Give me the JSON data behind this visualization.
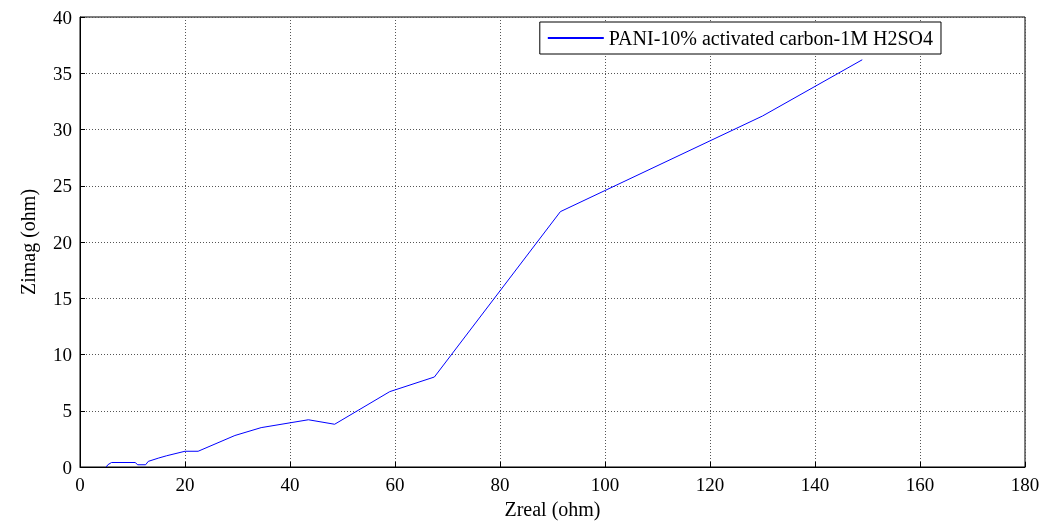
{
  "chart_data": {
    "type": "line",
    "xlabel": "Zreal (ohm)",
    "ylabel": "Zimag (ohm)",
    "x": [
      5,
      5.3,
      6,
      10.5,
      11,
      12.5,
      13,
      15,
      16.5,
      20,
      22.5,
      29.5,
      34.5,
      43.5,
      48.5,
      59,
      67.5,
      91.5,
      130,
      149
    ],
    "series": [
      {
        "name": "PANI-10% activated carbon-1M H2SO4",
        "color": "#0000ff",
        "values": [
          0,
          0.2,
          0.4,
          0.4,
          0.2,
          0.2,
          0.5,
          0.8,
          1.0,
          1.4,
          1.4,
          2.8,
          3.5,
          4.2,
          3.8,
          6.7,
          8,
          22.7,
          31.2,
          36.2
        ]
      }
    ],
    "xlim": [
      0,
      180
    ],
    "xticks": [
      0,
      20,
      40,
      60,
      80,
      100,
      120,
      140,
      160,
      180
    ],
    "ylim": [
      0,
      40
    ],
    "yticks": [
      0,
      5,
      10,
      15,
      20,
      25,
      30,
      35,
      40
    ],
    "grid": true,
    "legend": "top right",
    "marker": "none",
    "line_style": "solid"
  }
}
